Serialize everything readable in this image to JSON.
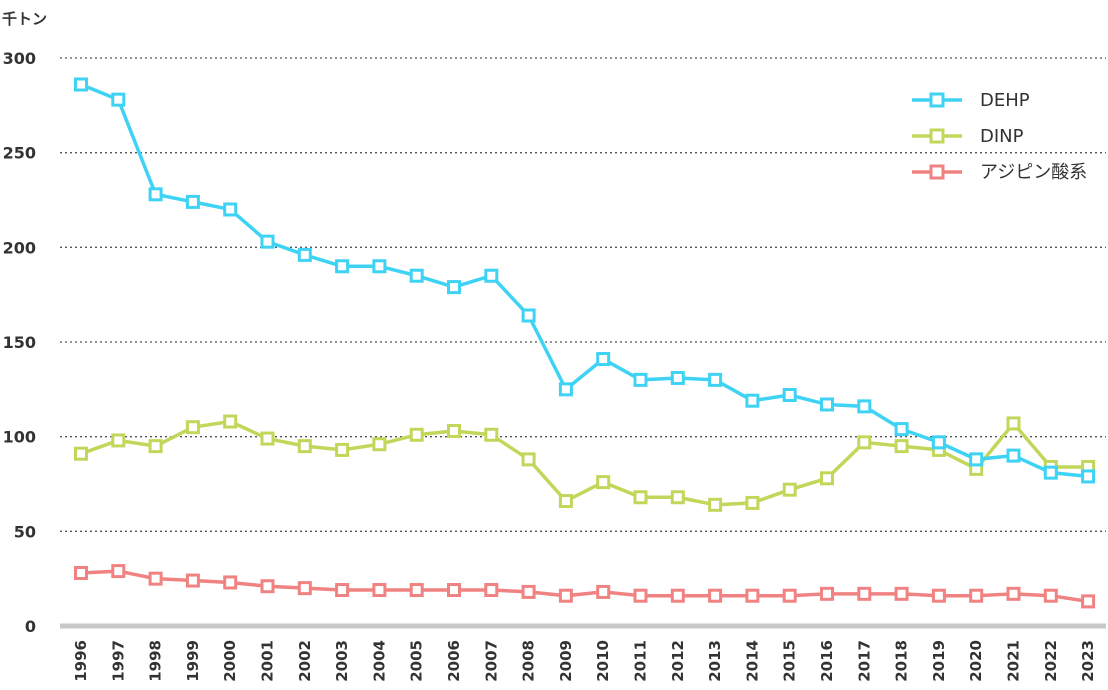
{
  "chart_data": {
    "type": "line",
    "ylabel": "千トン",
    "ylim": [
      0,
      300
    ],
    "yticks": [
      0,
      50,
      100,
      150,
      200,
      250,
      300
    ],
    "grid": true,
    "legend_position": "top-right",
    "x": [
      "1996",
      "1997",
      "1998",
      "1999",
      "2000",
      "2001",
      "2002",
      "2003",
      "2004",
      "2005",
      "2006",
      "2007",
      "2008",
      "2009",
      "2010",
      "2011",
      "2012",
      "2013",
      "2014",
      "2015",
      "2016",
      "2017",
      "2018",
      "2019",
      "2020",
      "2021",
      "2022",
      "2023"
    ],
    "series": [
      {
        "name": "DEHP",
        "color": "#3ed3f4",
        "values": [
          286,
          278,
          228,
          224,
          220,
          203,
          196,
          190,
          190,
          185,
          179,
          185,
          164,
          125,
          141,
          130,
          131,
          130,
          119,
          122,
          117,
          116,
          104,
          97,
          88,
          90,
          81,
          79
        ]
      },
      {
        "name": "DINP",
        "color": "#c2d75a",
        "values": [
          91,
          98,
          95,
          105,
          108,
          99,
          95,
          93,
          96,
          101,
          103,
          101,
          88,
          66,
          76,
          68,
          68,
          64,
          65,
          72,
          78,
          97,
          95,
          93,
          83,
          107,
          84,
          84
        ]
      },
      {
        "name": "アジピン酸系",
        "color": "#f08282",
        "values": [
          28,
          29,
          25,
          24,
          23,
          21,
          20,
          19,
          19,
          19,
          19,
          19,
          18,
          16,
          18,
          16,
          16,
          16,
          16,
          16,
          17,
          17,
          17,
          16,
          16,
          17,
          16,
          13
        ]
      }
    ]
  }
}
